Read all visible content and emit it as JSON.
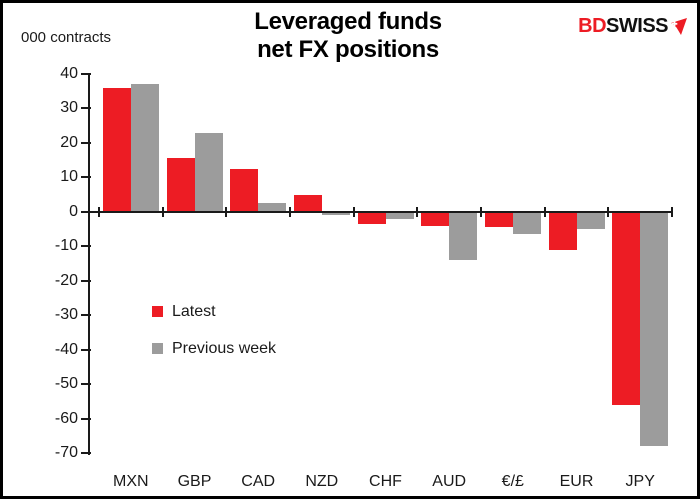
{
  "header": {
    "units_label": "000 contracts",
    "title_line1": "Leveraged funds",
    "title_line2": "net FX positions",
    "logo": {
      "text_red": "BD",
      "text_black": "SWISS",
      "red_color": "#ED1C24",
      "black_color": "#111111"
    }
  },
  "legend": [
    {
      "label": "Latest",
      "color": "#ED1C24"
    },
    {
      "label": "Previous week",
      "color": "#9C9C9C"
    }
  ],
  "chart_data": {
    "type": "bar",
    "title": "Leveraged funds net FX positions",
    "units": "000 contracts",
    "categories": [
      "MXN",
      "GBP",
      "CAD",
      "NZD",
      "CHF",
      "AUD",
      "€/£",
      "EUR",
      "JPY"
    ],
    "series": [
      {
        "name": "Latest",
        "color": "#ED1C24",
        "values": [
          36,
          15.5,
          12.5,
          5,
          -3.5,
          -4,
          -4.5,
          -11,
          -56
        ]
      },
      {
        "name": "Previous week",
        "color": "#9C9C9C",
        "values": [
          37,
          23,
          2.5,
          -1,
          -2,
          -14,
          -6.5,
          -5,
          -68
        ]
      }
    ],
    "ylim": [
      -70,
      40
    ],
    "yticks": [
      40,
      30,
      20,
      10,
      0,
      -10,
      -20,
      -30,
      -40,
      -50,
      -60,
      -70
    ],
    "grid": false,
    "legend_position": "center-left"
  }
}
